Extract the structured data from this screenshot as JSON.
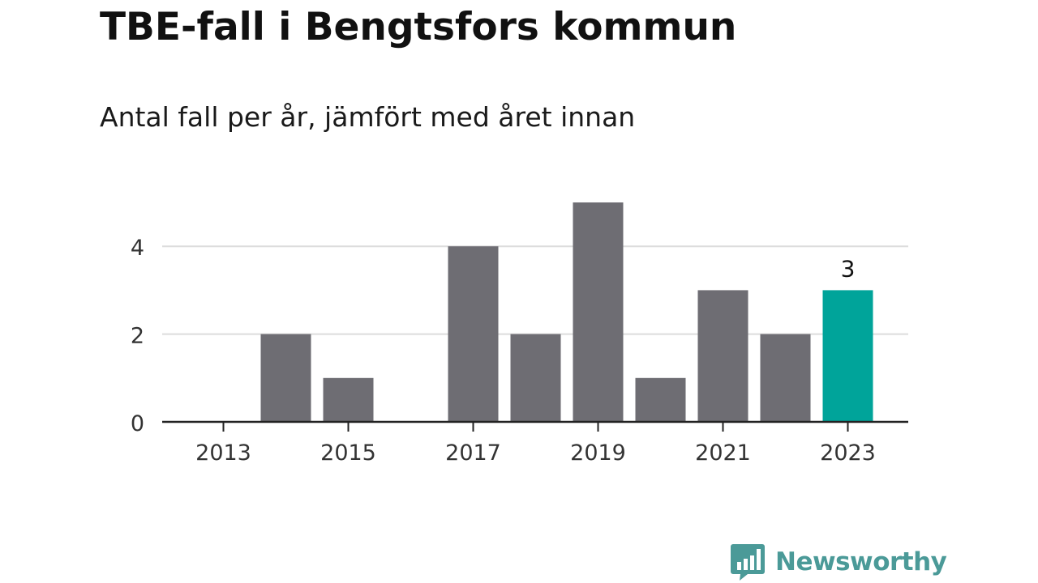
{
  "chart_data": {
    "type": "bar",
    "title": "TBE-fall i Bengtsfors kommun",
    "subtitle": "Antal fall per år, jämfört med året innan",
    "categories": [
      "2013",
      "2014",
      "2015",
      "2016",
      "2017",
      "2018",
      "2019",
      "2020",
      "2021",
      "2022",
      "2023"
    ],
    "values": [
      0,
      2,
      1,
      0,
      4,
      2,
      5,
      1,
      3,
      2,
      3
    ],
    "x_tick_labels": [
      "2013",
      "2015",
      "2017",
      "2019",
      "2021",
      "2023"
    ],
    "y_ticks": [
      0,
      2,
      4
    ],
    "ylim": [
      0,
      5
    ],
    "grid": true,
    "highlight": {
      "category": "2023",
      "label": "3"
    },
    "colors": {
      "bar": "#6e6d73",
      "highlight": "#00a49a",
      "grid": "#dcdcdc",
      "axis": "#222222",
      "text": "#333333"
    }
  },
  "brand": {
    "name": "Newsworthy",
    "icon": "newsworthy-logo-icon",
    "color": "#4b9a98"
  }
}
